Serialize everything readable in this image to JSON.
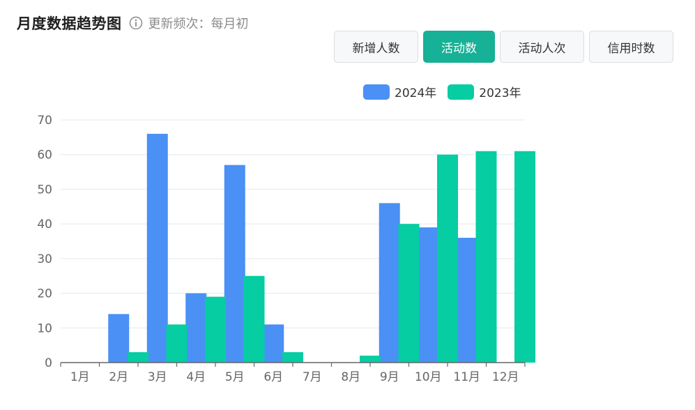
{
  "header": {
    "title": "月度数据趋势图",
    "subtitle": "更新频次：每月初"
  },
  "tabs": [
    {
      "label": "新增人数",
      "active": false
    },
    {
      "label": "活动数",
      "active": true
    },
    {
      "label": "活动人次",
      "active": false
    },
    {
      "label": "信用时数",
      "active": false
    }
  ],
  "colors": {
    "accent": "#16b196",
    "series_2024": "#4a90f5",
    "series_2023": "#06cda2"
  },
  "chart_data": {
    "type": "bar",
    "categories": [
      "1月",
      "2月",
      "3月",
      "4月",
      "5月",
      "6月",
      "7月",
      "8月",
      "9月",
      "10月",
      "11月",
      "12月"
    ],
    "series": [
      {
        "name": "2024年",
        "values": [
          0,
          14,
          66,
          20,
          57,
          11,
          0,
          0,
          46,
          39,
          36,
          0
        ]
      },
      {
        "name": "2023年",
        "values": [
          0,
          3,
          11,
          19,
          25,
          3,
          0,
          2,
          40,
          60,
          61,
          61
        ]
      }
    ],
    "ylim": [
      0,
      70
    ],
    "yticks": [
      0,
      10,
      20,
      30,
      40,
      50,
      60,
      70
    ],
    "grid": true,
    "legend": "top-right"
  }
}
